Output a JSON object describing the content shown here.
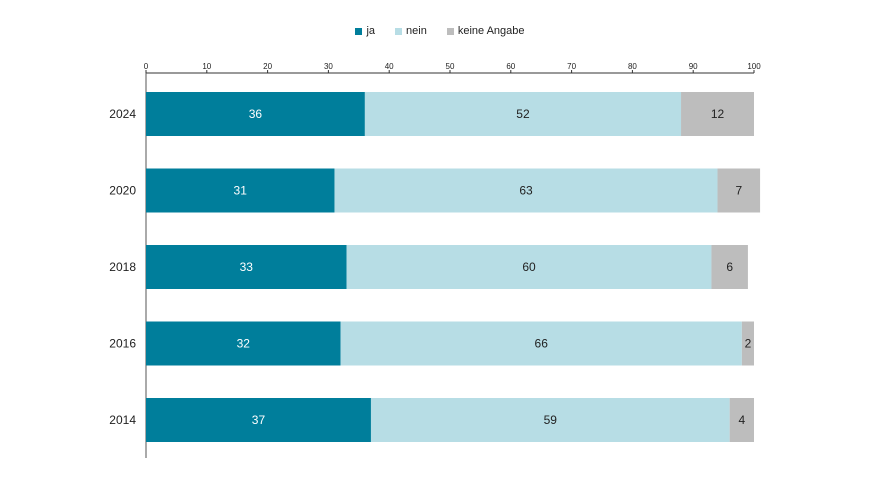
{
  "chart_data": {
    "type": "bar",
    "orientation": "horizontal",
    "stacked": true,
    "categories": [
      "2024",
      "2020",
      "2018",
      "2016",
      "2014"
    ],
    "series": [
      {
        "name": "ja",
        "color": "#007e9b",
        "label_color": "#ffffff",
        "values": [
          36,
          31,
          33,
          32,
          37
        ]
      },
      {
        "name": "nein",
        "color": "#b7dde5",
        "label_color": "#222222",
        "values": [
          52,
          63,
          60,
          66,
          59
        ]
      },
      {
        "name": "keine Angabe",
        "color": "#bdbdbd",
        "label_color": "#222222",
        "values": [
          12,
          7,
          6,
          2,
          4
        ]
      }
    ],
    "xlim": [
      0,
      100
    ],
    "xticks": [
      "0",
      "10",
      "20",
      "30",
      "40",
      "50",
      "60",
      "70",
      "80",
      "90",
      "100"
    ],
    "legend_position": "top",
    "grid": false
  }
}
